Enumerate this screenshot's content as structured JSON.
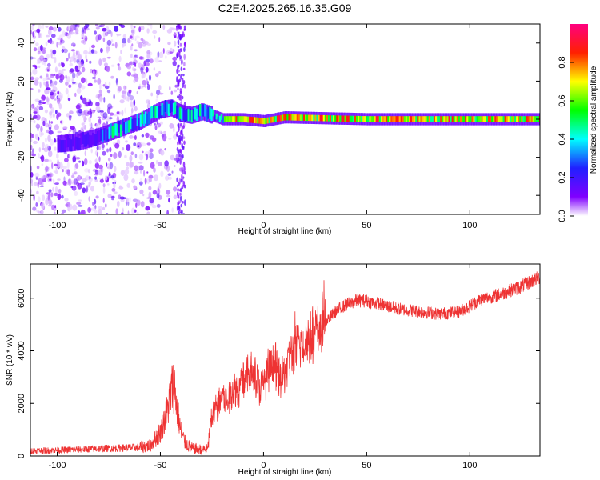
{
  "figure": {
    "title": "C2E4.2025.265.16.35.G09"
  },
  "chart_data": [
    {
      "type": "heatmap",
      "name": "spectrogram",
      "title": "C2E4.2025.265.16.35.G09",
      "xlabel": "Height of straight line (km)",
      "ylabel": "Frequency (Hz)",
      "xlim": [
        -113,
        134
      ],
      "ylim": [
        -50,
        50
      ],
      "xticks": [
        -100,
        -50,
        0,
        50,
        100
      ],
      "xtick_labels": [
        "-100",
        "-50",
        "0",
        "50",
        "100"
      ],
      "yticks": [
        -40,
        -20,
        0,
        20,
        40
      ],
      "ytick_labels": [
        "-40",
        "-20",
        "0",
        "20",
        "40"
      ],
      "colorbar": {
        "label": "Normalized spectral amplitude",
        "range": [
          0,
          1
        ],
        "ticks": [
          0.0,
          0.2,
          0.4,
          0.6,
          0.8
        ],
        "tick_labels": [
          "0.0",
          "0.2",
          "0.4",
          "0.6",
          "0.8"
        ],
        "colormap": "rainbow (white-purple-blue-cyan-green-yellow-red-magenta)"
      },
      "signal_track": {
        "x": [
          -100,
          -90,
          -80,
          -70,
          -60,
          -50,
          -45,
          -40,
          -35,
          -30,
          -25,
          -20,
          -10,
          0,
          10,
          50,
          100,
          134
        ],
        "frequency": [
          -13,
          -12,
          -9,
          -5,
          -1,
          5,
          6,
          3,
          2,
          4,
          2,
          0,
          0,
          -1,
          1,
          0,
          0,
          0
        ]
      },
      "noise_region": {
        "x": [
          -113,
          -40
        ],
        "frequency_spread": [
          -50,
          50
        ]
      },
      "notch_region": {
        "x": [
          -42,
          -38
        ]
      }
    },
    {
      "type": "line",
      "name": "snr",
      "xlabel": "Height of straight line (km)",
      "ylabel": "SNR (10 * v/v)",
      "xlim": [
        -113,
        134
      ],
      "ylim": [
        0,
        7300
      ],
      "xticks": [
        -100,
        -50,
        0,
        50,
        100
      ],
      "xtick_labels": [
        "-100",
        "-50",
        "0",
        "50",
        "100"
      ],
      "yticks": [
        0,
        2000,
        4000,
        6000
      ],
      "ytick_labels": [
        "0",
        "2000",
        "4000",
        "6000"
      ],
      "series": [
        {
          "name": "SNR",
          "color": "#ee3333",
          "x": [
            -113,
            -100,
            -90,
            -80,
            -70,
            -60,
            -55,
            -50,
            -47,
            -44,
            -43,
            -42,
            -40,
            -38,
            -35,
            -30,
            -27,
            -26,
            -24,
            -22,
            -20,
            -17,
            -15,
            -12,
            -10,
            -7,
            -5,
            -2,
            0,
            3,
            5,
            8,
            10,
            13,
            15,
            20,
            25,
            30,
            35,
            40,
            45,
            50,
            55,
            60,
            65,
            70,
            75,
            80,
            85,
            90,
            95,
            100,
            105,
            110,
            115,
            120,
            125,
            130,
            134
          ],
          "values": [
            200,
            220,
            250,
            280,
            300,
            330,
            400,
            900,
            1600,
            2700,
            2600,
            1800,
            900,
            500,
            300,
            250,
            250,
            1000,
            1700,
            1900,
            2300,
            2000,
            2600,
            2500,
            2900,
            3100,
            3300,
            2600,
            2700,
            3200,
            3500,
            2900,
            3100,
            3800,
            4000,
            4400,
            4600,
            5100,
            5500,
            5750,
            5900,
            5900,
            5800,
            5700,
            5600,
            5550,
            5500,
            5450,
            5400,
            5450,
            5500,
            5700,
            5950,
            6050,
            6150,
            6300,
            6450,
            6650,
            6800
          ]
        }
      ]
    }
  ]
}
